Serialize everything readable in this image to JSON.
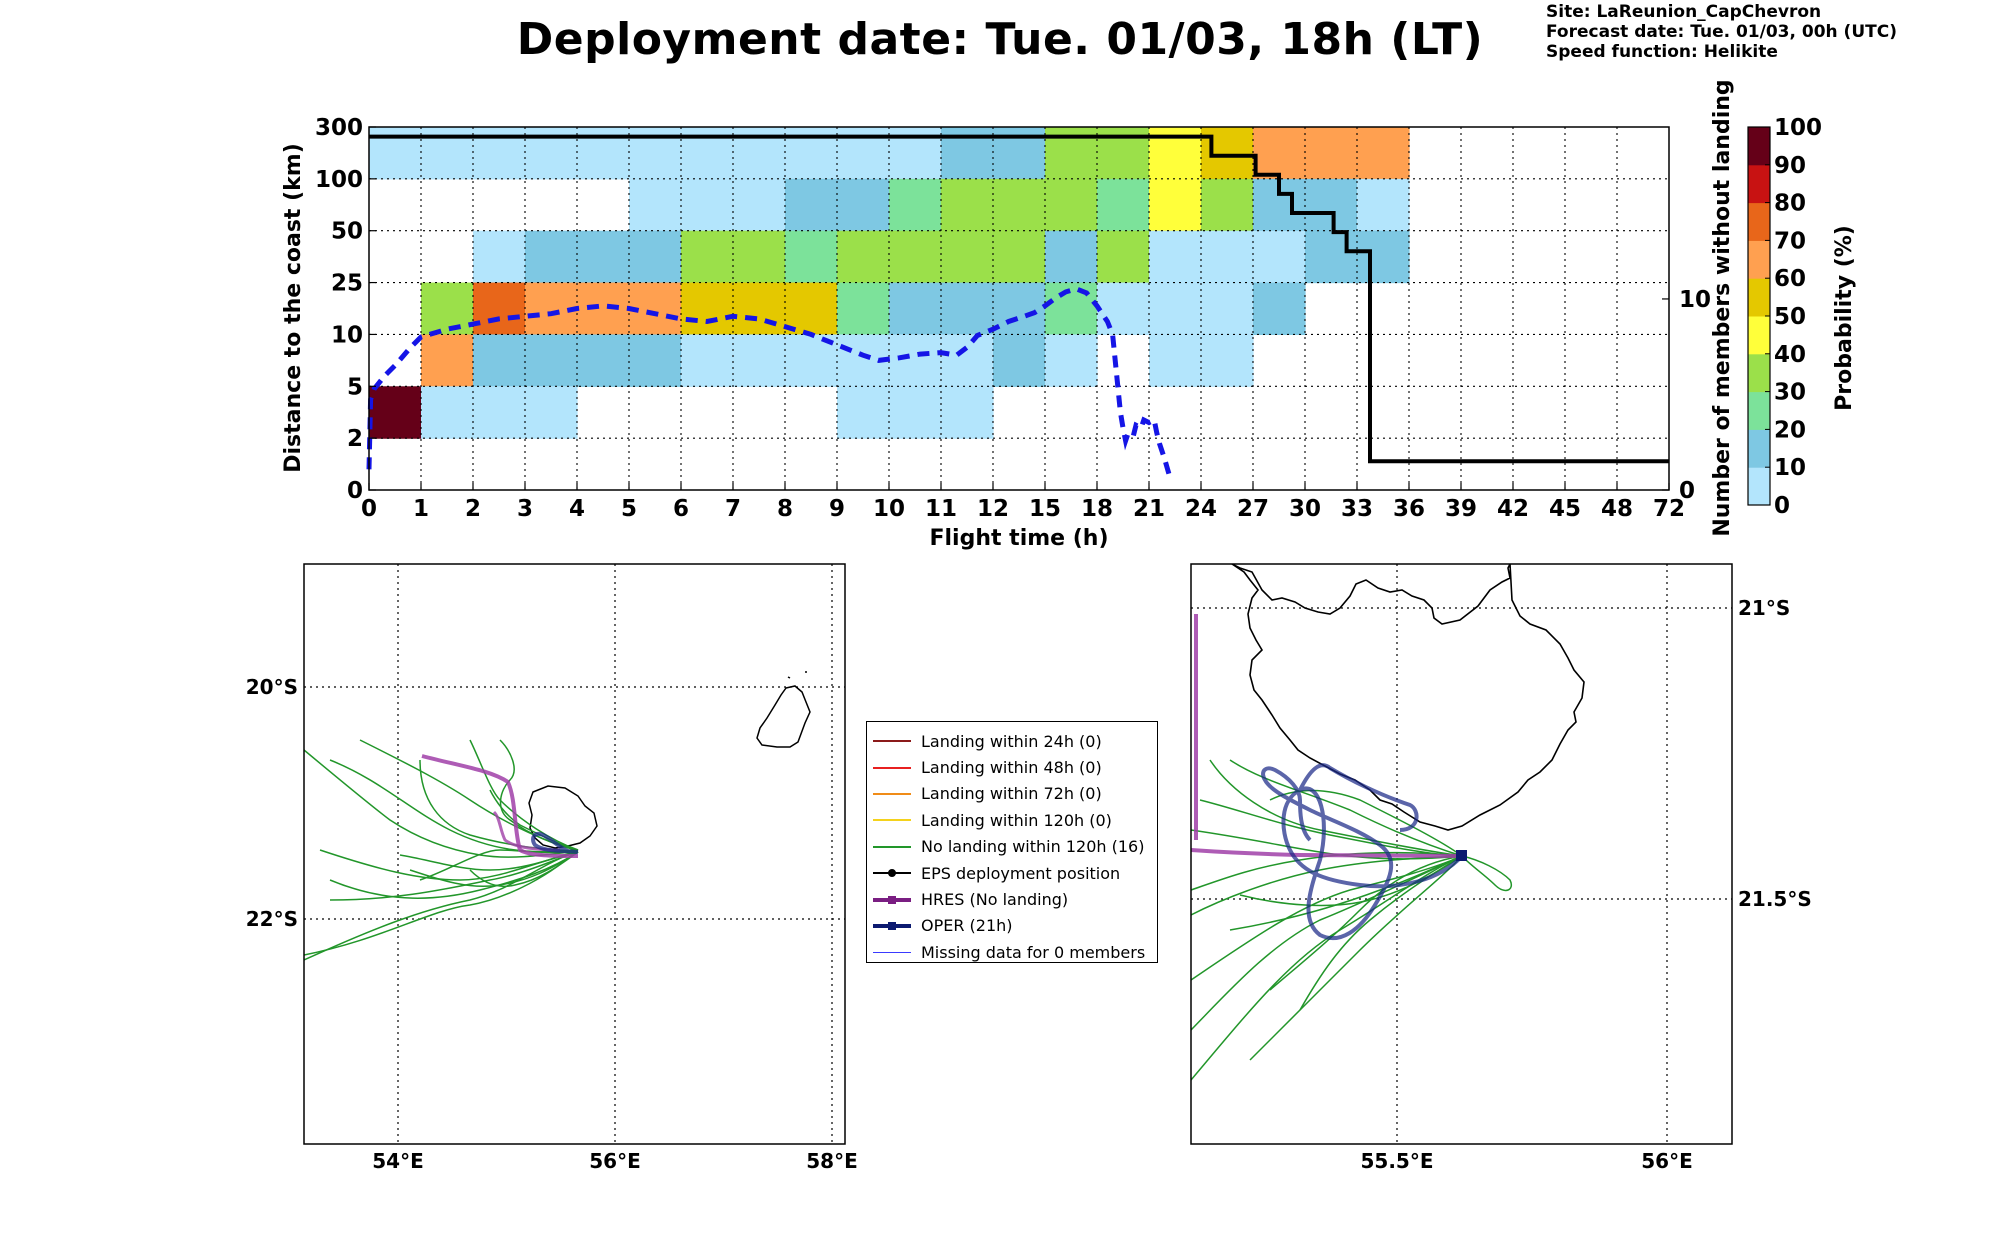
{
  "header": {
    "title": "Deployment date: Tue. 01/03, 18h (LT)",
    "site": "Site: LaReunion_CapChevron",
    "forecast_date": "Forecast date: Tue. 01/03, 00h (UTC)",
    "speed_function": "Speed function: Helikite"
  },
  "colors": {
    "bins": [
      "#b3e5fc",
      "#7ec8e3",
      "#7ce29a",
      "#9be04a",
      "#ffff3a",
      "#e4c800",
      "#ffa050",
      "#e8661a",
      "#c81212",
      "#650018"
    ],
    "survival_line": "#000000",
    "mean_distance_line": "#1515e6",
    "green_traj": "#22962a",
    "hres": "#a040a8",
    "oper": "#1c2a88"
  },
  "chart_data": [
    {
      "type": "heatmap",
      "xlabel": "Flight time (h)",
      "ylabel_left": "Distance to the coast (km)",
      "ylabel_right": "Number of members without landing",
      "x_ticks": [
        "0",
        "1",
        "2",
        "3",
        "4",
        "5",
        "6",
        "7",
        "8",
        "9",
        "10",
        "11",
        "12",
        "15",
        "18",
        "21",
        "24",
        "27",
        "30",
        "33",
        "36",
        "39",
        "42",
        "45",
        "48",
        "72"
      ],
      "y_ticks": [
        "0",
        "2",
        "5",
        "10",
        "25",
        "50",
        "100",
        "300"
      ],
      "right_ticks": [
        "0",
        "10"
      ],
      "right_range": [
        0,
        19
      ],
      "grid": true,
      "colorbar": {
        "label": "Probability (%)",
        "ticks": [
          "0",
          "10",
          "20",
          "30",
          "40",
          "50",
          "60",
          "70",
          "80",
          "90",
          "100"
        ]
      },
      "cells": [
        [
          0,
          6,
          0
        ],
        [
          0,
          6,
          1
        ],
        [
          0,
          6,
          2
        ],
        [
          0,
          6,
          3
        ],
        [
          0,
          6,
          4
        ],
        [
          0,
          6,
          5
        ],
        [
          0,
          6,
          6
        ],
        [
          0,
          6,
          7
        ],
        [
          0,
          6,
          8
        ],
        [
          0,
          6,
          9
        ],
        [
          0,
          6,
          10
        ],
        [
          1,
          6,
          11
        ],
        [
          1,
          6,
          12
        ],
        [
          3,
          6,
          13
        ],
        [
          3,
          6,
          14
        ],
        [
          4,
          6,
          15
        ],
        [
          5,
          6,
          16
        ],
        [
          6,
          6,
          17
        ],
        [
          6,
          6,
          18
        ],
        [
          6,
          6,
          19
        ],
        [
          0,
          5,
          5
        ],
        [
          0,
          5,
          6
        ],
        [
          0,
          5,
          7
        ],
        [
          1,
          5,
          8
        ],
        [
          1,
          5,
          9
        ],
        [
          2,
          5,
          10
        ],
        [
          3,
          5,
          11
        ],
        [
          3,
          5,
          12
        ],
        [
          3,
          5,
          13
        ],
        [
          2,
          5,
          14
        ],
        [
          4,
          5,
          15
        ],
        [
          3,
          5,
          16
        ],
        [
          1,
          5,
          17
        ],
        [
          1,
          5,
          18
        ],
        [
          0,
          5,
          19
        ],
        [
          0,
          4,
          2
        ],
        [
          1,
          4,
          3
        ],
        [
          1,
          4,
          4
        ],
        [
          1,
          4,
          5
        ],
        [
          3,
          4,
          6
        ],
        [
          3,
          4,
          7
        ],
        [
          2,
          4,
          8
        ],
        [
          3,
          4,
          9
        ],
        [
          3,
          4,
          10
        ],
        [
          3,
          4,
          11
        ],
        [
          3,
          4,
          12
        ],
        [
          1,
          4,
          13
        ],
        [
          3,
          4,
          14
        ],
        [
          0,
          4,
          15
        ],
        [
          0,
          4,
          16
        ],
        [
          0,
          4,
          17
        ],
        [
          1,
          4,
          18
        ],
        [
          1,
          4,
          19
        ],
        [
          3,
          3,
          1
        ],
        [
          7,
          3,
          2
        ],
        [
          6,
          3,
          3
        ],
        [
          6,
          3,
          4
        ],
        [
          6,
          3,
          5
        ],
        [
          5,
          3,
          6
        ],
        [
          5,
          3,
          7
        ],
        [
          5,
          3,
          8
        ],
        [
          2,
          3,
          9
        ],
        [
          1,
          3,
          10
        ],
        [
          1,
          3,
          11
        ],
        [
          1,
          3,
          12
        ],
        [
          2,
          3,
          13
        ],
        [
          0,
          3,
          14
        ],
        [
          0,
          3,
          15
        ],
        [
          0,
          3,
          16
        ],
        [
          1,
          3,
          17
        ],
        [
          6,
          2,
          1
        ],
        [
          1,
          2,
          2
        ],
        [
          1,
          2,
          3
        ],
        [
          1,
          2,
          4
        ],
        [
          1,
          2,
          5
        ],
        [
          0,
          2,
          6
        ],
        [
          0,
          2,
          7
        ],
        [
          0,
          2,
          8
        ],
        [
          0,
          2,
          9
        ],
        [
          0,
          2,
          10
        ],
        [
          0,
          2,
          11
        ],
        [
          1,
          2,
          12
        ],
        [
          0,
          2,
          13
        ],
        [
          0,
          2,
          15
        ],
        [
          0,
          2,
          16
        ],
        [
          9,
          1,
          0
        ],
        [
          0,
          1,
          1
        ],
        [
          0,
          1,
          2
        ],
        [
          0,
          1,
          3
        ],
        [
          0,
          1,
          9
        ],
        [
          0,
          1,
          10
        ],
        [
          0,
          1,
          11
        ]
      ],
      "survival_steps": [
        [
          0,
          18.5
        ],
        [
          16.2,
          18.5
        ],
        [
          16.2,
          17.5
        ],
        [
          17.05,
          17.5
        ],
        [
          17.05,
          16.5
        ],
        [
          17.5,
          16.5
        ],
        [
          17.5,
          15.5
        ],
        [
          17.75,
          15.5
        ],
        [
          17.75,
          14.5
        ],
        [
          18.55,
          14.5
        ],
        [
          18.55,
          13.5
        ],
        [
          18.8,
          13.5
        ],
        [
          18.8,
          12.5
        ],
        [
          19.25,
          12.5
        ],
        [
          19.25,
          1.5
        ],
        [
          25,
          1.5
        ]
      ],
      "mean_distance": [
        [
          0,
          0.4
        ],
        [
          0.03,
          1.75
        ],
        [
          0.1,
          1.95
        ],
        [
          0.3,
          2.2
        ],
        [
          0.5,
          2.4
        ],
        [
          0.8,
          2.75
        ],
        [
          1,
          2.95
        ],
        [
          1.5,
          3.1
        ],
        [
          2,
          3.2
        ],
        [
          2.5,
          3.3
        ],
        [
          3,
          3.35
        ],
        [
          3.5,
          3.4
        ],
        [
          4,
          3.5
        ],
        [
          4.5,
          3.55
        ],
        [
          5,
          3.5
        ],
        [
          5.5,
          3.4
        ],
        [
          6,
          3.3
        ],
        [
          6.5,
          3.25
        ],
        [
          7,
          3.35
        ],
        [
          7.5,
          3.3
        ],
        [
          8,
          3.15
        ],
        [
          8.5,
          3.0
        ],
        [
          9,
          2.8
        ],
        [
          9.5,
          2.6
        ],
        [
          9.8,
          2.5
        ],
        [
          10.2,
          2.55
        ],
        [
          10.6,
          2.62
        ],
        [
          11,
          2.65
        ],
        [
          11.3,
          2.6
        ],
        [
          11.5,
          2.75
        ],
        [
          11.7,
          2.98
        ],
        [
          12,
          3.1
        ],
        [
          12.3,
          3.25
        ],
        [
          12.6,
          3.35
        ],
        [
          12.8,
          3.42
        ],
        [
          13,
          3.55
        ],
        [
          13.2,
          3.7
        ],
        [
          13.4,
          3.82
        ],
        [
          13.6,
          3.88
        ],
        [
          13.8,
          3.8
        ],
        [
          14,
          3.55
        ],
        [
          14.2,
          3.25
        ],
        [
          14.3,
          3.0
        ],
        [
          14.35,
          2.5
        ],
        [
          14.4,
          2.0
        ],
        [
          14.45,
          1.5
        ],
        [
          14.5,
          1.2
        ],
        [
          14.55,
          0.95
        ],
        [
          14.6,
          1.1
        ],
        [
          14.7,
          1.05
        ],
        [
          14.75,
          1.25
        ],
        [
          14.85,
          1.2
        ],
        [
          14.9,
          1.35
        ],
        [
          15,
          1.3
        ],
        [
          15.1,
          1.35
        ],
        [
          15.15,
          1.1
        ],
        [
          15.2,
          0.9
        ],
        [
          15.3,
          0.6
        ],
        [
          15.4,
          0.25
        ]
      ]
    },
    {
      "type": "map",
      "lon_ticks": [
        "54°E",
        "56°E",
        "58°E"
      ],
      "lat_ticks": [
        "20°S",
        "22°S"
      ]
    },
    {
      "type": "map",
      "lon_ticks": [
        "55.5°E",
        "56°E"
      ],
      "lat_ticks": [
        "21°S",
        "21.5°S"
      ]
    }
  ],
  "legend": [
    {
      "label": "Landing within 24h (0)",
      "color": "#8b1a1a",
      "width": 2,
      "marker": null
    },
    {
      "label": "Landing within 48h (0)",
      "color": "#e82020",
      "width": 2,
      "marker": null
    },
    {
      "label": "Landing within 72h (0)",
      "color": "#f08c18",
      "width": 2,
      "marker": null
    },
    {
      "label": "Landing within 120h (0)",
      "color": "#f4d21c",
      "width": 2,
      "marker": null
    },
    {
      "label": "No landing within 120h (16)",
      "color": "#22962a",
      "width": 2,
      "marker": null
    },
    {
      "label": "EPS deployment position",
      "color": "#000000",
      "width": 2,
      "marker": "circle"
    },
    {
      "label": "HRES (No landing)",
      "color": "#7a1e82",
      "width": 4,
      "marker": "square"
    },
    {
      "label": "OPER (21h)",
      "color": "#0c1a70",
      "width": 4,
      "marker": "square"
    },
    {
      "label": "Missing data for 0 members",
      "color": "#3a3aff",
      "width": 1,
      "marker": null
    }
  ]
}
